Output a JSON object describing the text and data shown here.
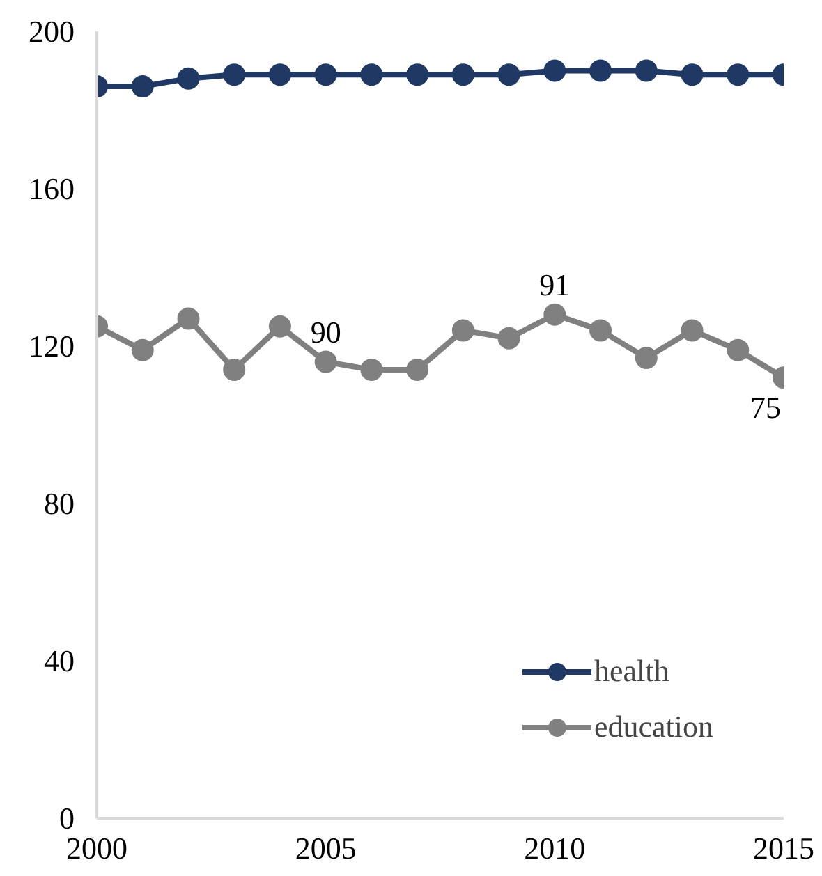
{
  "chart_data": {
    "type": "line",
    "x": [
      2000,
      2001,
      2002,
      2003,
      2004,
      2005,
      2006,
      2007,
      2008,
      2009,
      2010,
      2011,
      2012,
      2013,
      2014,
      2015
    ],
    "series": [
      {
        "name": "health",
        "color": "#203864",
        "values": [
          186,
          186,
          188,
          189,
          189,
          189,
          189,
          189,
          189,
          189,
          190,
          190,
          190,
          189,
          189,
          189
        ]
      },
      {
        "name": "education",
        "color": "#808080",
        "values": [
          125,
          119,
          127,
          114,
          125,
          116,
          114,
          114,
          124,
          122,
          128,
          124,
          117,
          124,
          119,
          112
        ]
      }
    ],
    "annotations": [
      {
        "text": "90",
        "x": 2005,
        "y": 116
      },
      {
        "text": "91",
        "x": 2010,
        "y": 128
      },
      {
        "text": "75",
        "x": 2015,
        "y": 112
      }
    ],
    "xlim": [
      2000,
      2015
    ],
    "xticks": [
      2000,
      2005,
      2010,
      2015
    ],
    "ylim": [
      0,
      200
    ],
    "yticks": [
      0,
      40,
      80,
      120,
      160,
      200
    ],
    "grid": false,
    "legend": "bottom right",
    "marker": "circle",
    "line_style": "solid"
  }
}
